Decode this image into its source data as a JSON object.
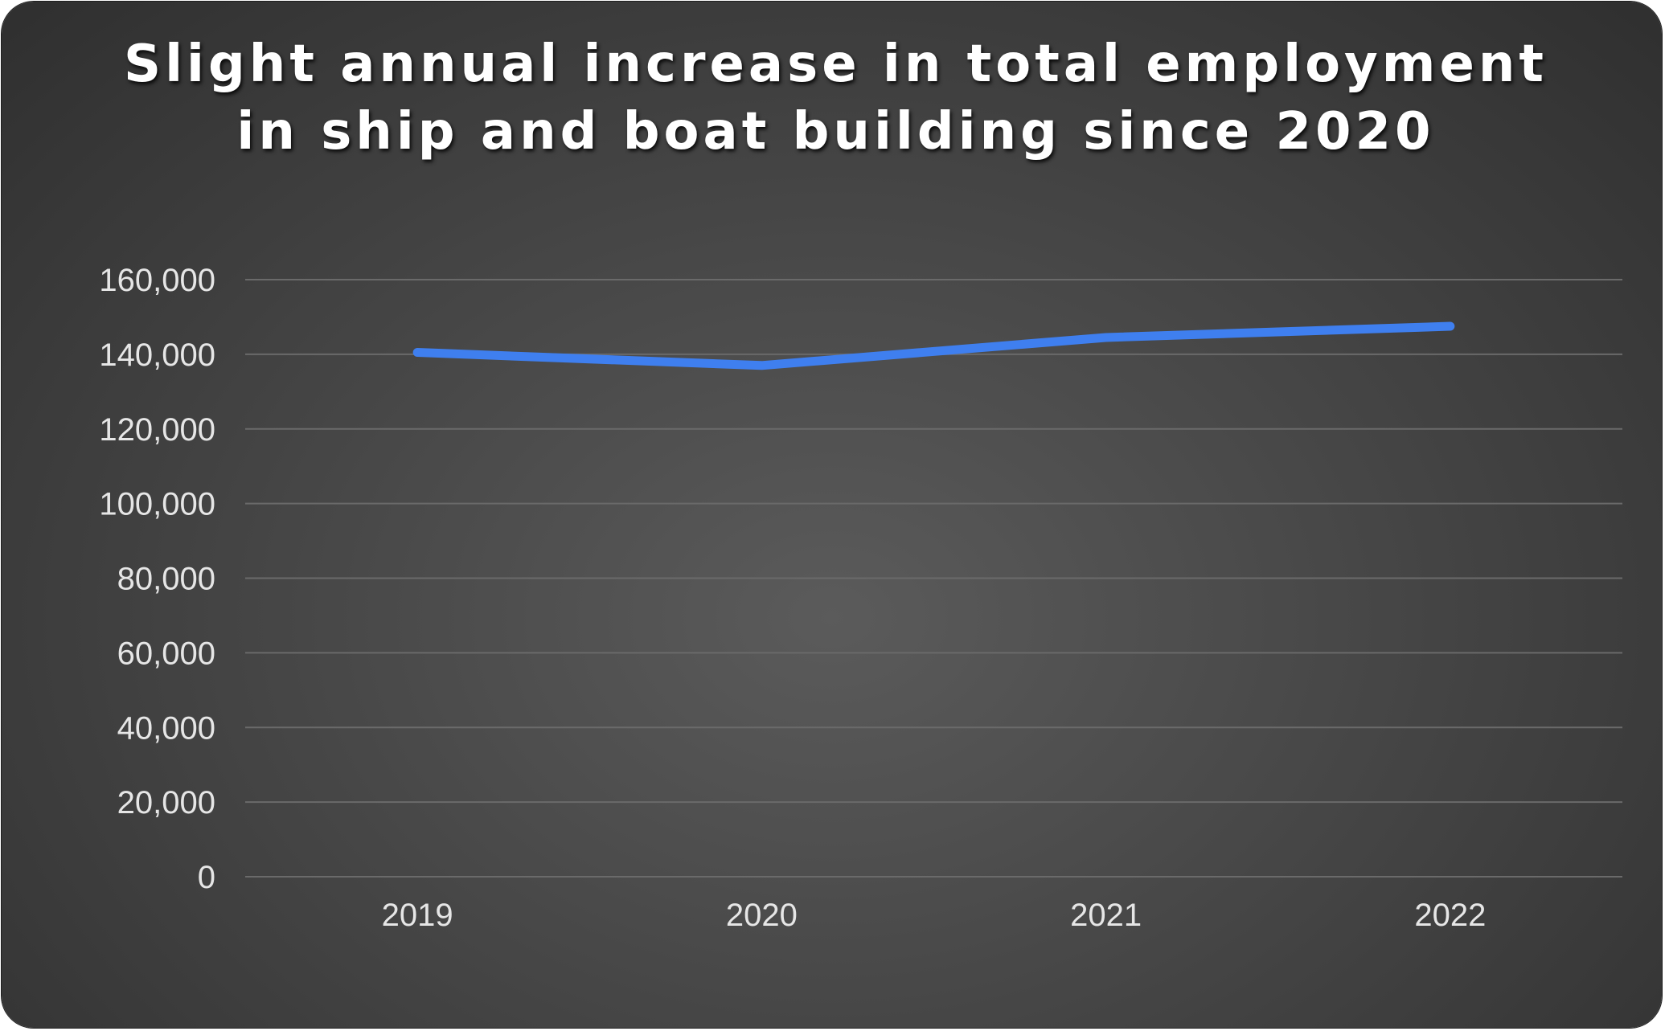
{
  "chart_data": {
    "type": "line",
    "title": "Slight annual increase in total employment in ship and boat building since 2020",
    "xlabel": "",
    "ylabel": "",
    "categories": [
      "2019",
      "2020",
      "2021",
      "2022"
    ],
    "series": [
      {
        "values": [
          140500,
          137000,
          144500,
          147500
        ]
      }
    ],
    "ylim": [
      0,
      160000
    ],
    "yticks": [
      0,
      20000,
      40000,
      60000,
      80000,
      100000,
      120000,
      140000,
      160000
    ],
    "ytick_labels": [
      "0",
      "20,000",
      "40,000",
      "60,000",
      "80,000",
      "100,000",
      "120,000",
      "140,000",
      "160,000"
    ],
    "grid": true,
    "legend": "none",
    "colors": {
      "line": "#3f7fef",
      "background": "#474747",
      "gridline": "#6a6a6a",
      "text": "#e6e6e6",
      "title": "#ffffff"
    }
  }
}
